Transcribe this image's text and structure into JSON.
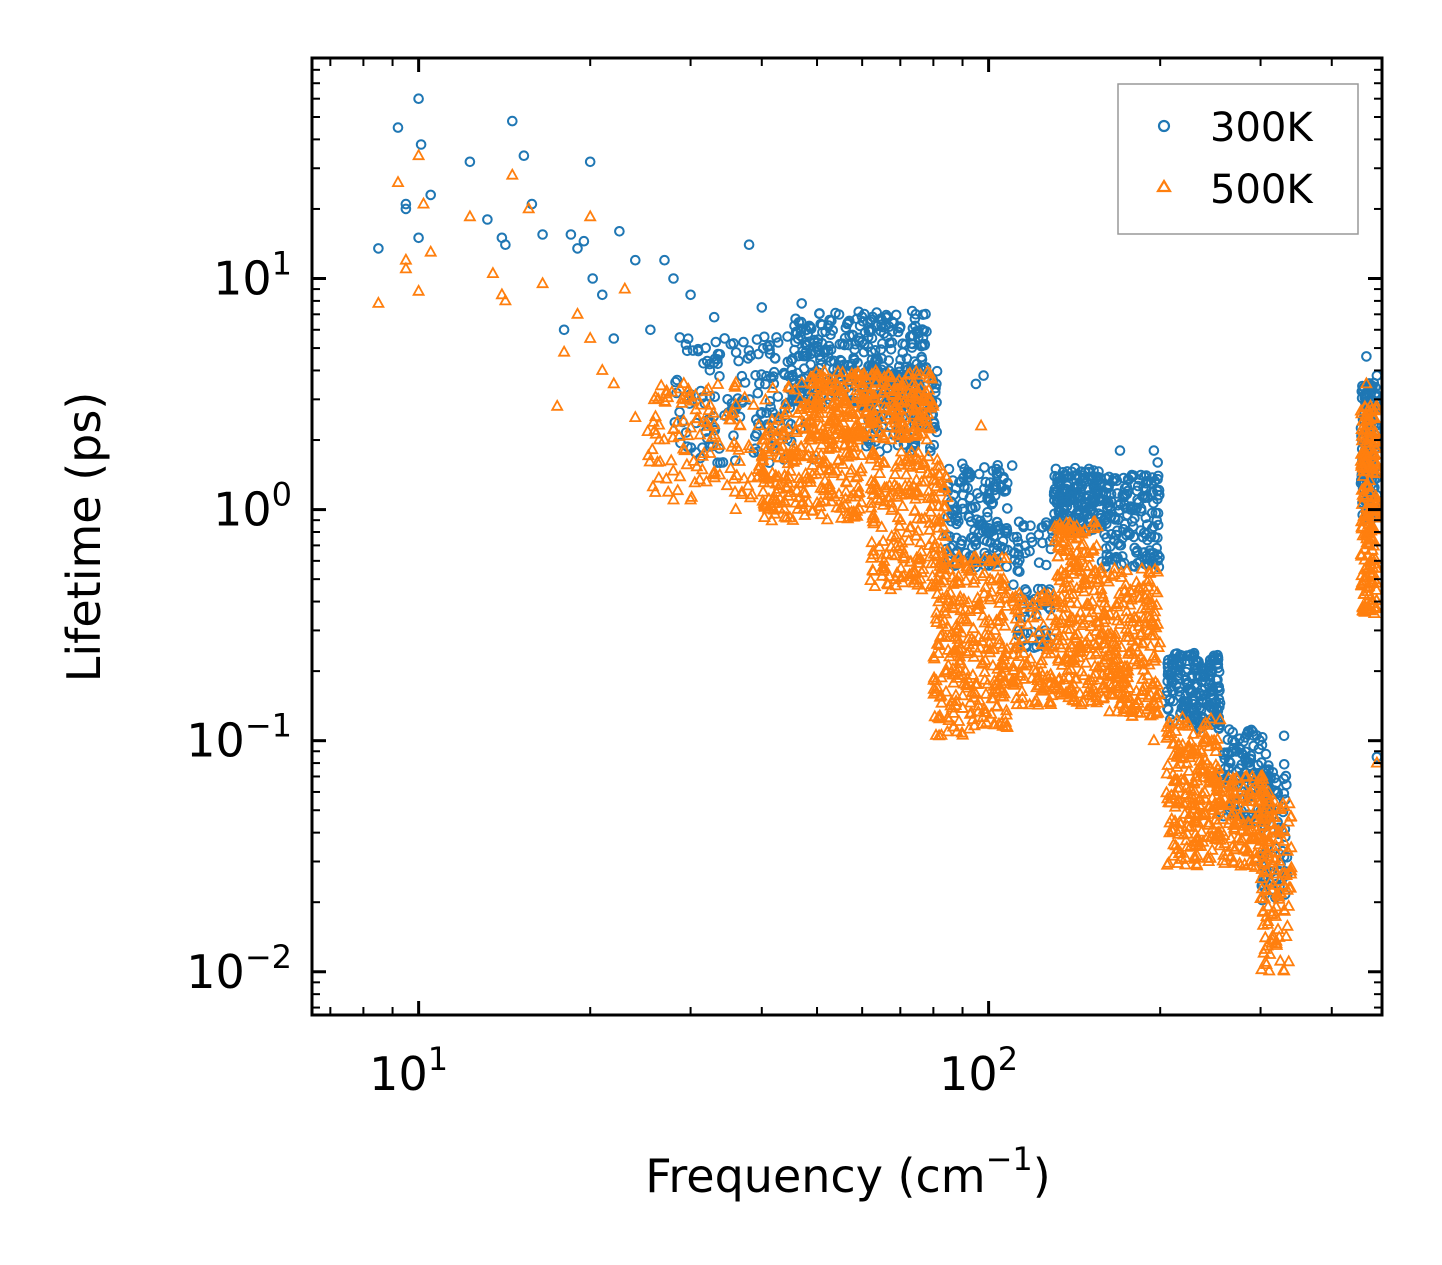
{
  "chart_data": {
    "type": "scatter",
    "xscale": "log",
    "yscale": "log",
    "xlim": [
      6.5,
      490
    ],
    "ylim": [
      0.0065,
      90
    ],
    "xlabel": "Frequency (cm",
    "xlabel_sup": "−1",
    "xlabel_end": ")",
    "ylabel": "Lifetime (ps)",
    "x_major_ticks": [
      {
        "value": 10,
        "base": "10",
        "exp": "1"
      },
      {
        "value": 100,
        "base": "10",
        "exp": "2"
      }
    ],
    "y_major_ticks": [
      {
        "value": 10,
        "base": "10",
        "exp": "1"
      },
      {
        "value": 1,
        "base": "10",
        "exp": "0"
      },
      {
        "value": 0.1,
        "base": "10",
        "exp": "−1"
      },
      {
        "value": 0.01,
        "base": "10",
        "exp": "−2"
      }
    ],
    "legend_position": "top-right",
    "series": [
      {
        "name": "300K",
        "marker": "circle",
        "color": "#1f77b4",
        "points": [
          [
            8.5,
            13.5
          ],
          [
            9.2,
            45
          ],
          [
            9.5,
            20
          ],
          [
            9.5,
            21
          ],
          [
            10,
            60
          ],
          [
            10.1,
            38
          ],
          [
            10,
            15
          ],
          [
            10.5,
            23
          ],
          [
            12.3,
            32
          ],
          [
            13.2,
            18
          ],
          [
            14,
            15
          ],
          [
            14.2,
            14
          ],
          [
            14.6,
            48
          ],
          [
            15.3,
            34
          ],
          [
            15.8,
            21
          ],
          [
            16.5,
            15.5
          ],
          [
            18,
            6
          ],
          [
            18.5,
            15.5
          ],
          [
            19,
            13.5
          ],
          [
            19.5,
            14.5
          ],
          [
            20,
            32
          ],
          [
            20.2,
            10
          ],
          [
            21,
            8.5
          ],
          [
            22,
            5.5
          ],
          [
            22.5,
            16
          ],
          [
            24,
            12
          ],
          [
            25.5,
            6
          ],
          [
            27,
            12
          ],
          [
            28,
            10
          ],
          [
            30,
            8.5
          ],
          [
            33,
            6.8
          ],
          [
            38,
            14
          ],
          [
            40,
            7.5
          ],
          [
            47,
            7.8
          ],
          [
            95,
            3.5
          ],
          [
            98,
            3.8
          ],
          [
            110,
            1.55
          ],
          [
            135,
            1.45
          ],
          [
            150,
            1.5
          ],
          [
            170,
            1.8
          ],
          [
            195,
            1.8
          ],
          [
            198,
            1.6
          ],
          [
            310,
            0.075
          ],
          [
            330,
            0.105
          ],
          [
            460,
            4.6
          ],
          [
            480,
            0.085
          ],
          [
            480,
            3.8
          ]
        ],
        "clusters": [
          {
            "x": [
              28,
              50
            ],
            "ylog": [
              0.2,
              0.75
            ],
            "n": 160
          },
          {
            "x": [
              45,
              78
            ],
            "ylog": [
              0.45,
              0.86
            ],
            "n": 320
          },
          {
            "x": [
              60,
              82
            ],
            "ylog": [
              0.25,
              0.62
            ],
            "n": 120
          },
          {
            "x": [
              84,
              108
            ],
            "ylog": [
              -0.25,
              0.2
            ],
            "n": 160
          },
          {
            "x": [
              110,
              130
            ],
            "ylog": [
              -0.6,
              -0.05
            ],
            "n": 80
          },
          {
            "x": [
              130,
              158
            ],
            "ylog": [
              -0.1,
              0.18
            ],
            "n": 170
          },
          {
            "x": [
              158,
              200
            ],
            "ylog": [
              -0.25,
              0.15
            ],
            "n": 170
          },
          {
            "x": [
              205,
              255
            ],
            "ylog": [
              -0.95,
              -0.62
            ],
            "n": 200
          },
          {
            "x": [
              255,
              310
            ],
            "ylog": [
              -1.35,
              -0.95
            ],
            "n": 120
          },
          {
            "x": [
              300,
              335
            ],
            "ylog": [
              -1.7,
              -1.1
            ],
            "n": 80
          },
          {
            "x": [
              450,
              480
            ],
            "ylog": [
              -0.05,
              0.55
            ],
            "n": 150
          }
        ]
      },
      {
        "name": "500K",
        "marker": "triangle",
        "color": "#ff7f0e",
        "points": [
          [
            8.5,
            7.8
          ],
          [
            9.2,
            26
          ],
          [
            9.5,
            11
          ],
          [
            9.5,
            12
          ],
          [
            10,
            34
          ],
          [
            10.2,
            21
          ],
          [
            10,
            8.8
          ],
          [
            10.5,
            13
          ],
          [
            12.3,
            18.5
          ],
          [
            13.5,
            10.5
          ],
          [
            14,
            8.5
          ],
          [
            14.2,
            8
          ],
          [
            14.6,
            28
          ],
          [
            15.6,
            20
          ],
          [
            16.5,
            9.5
          ],
          [
            17.5,
            2.8
          ],
          [
            18,
            4.8
          ],
          [
            19,
            7
          ],
          [
            20,
            18.5
          ],
          [
            20,
            5.5
          ],
          [
            21,
            4
          ],
          [
            22,
            3.5
          ],
          [
            23,
            9
          ],
          [
            24,
            2.5
          ],
          [
            28,
            1.1
          ],
          [
            30,
            1.1
          ],
          [
            36,
            1.0
          ],
          [
            47,
            1.05
          ],
          [
            97,
            2.3
          ],
          [
            195,
            0.1
          ],
          [
            480,
            0.08
          ],
          [
            460,
            3.5
          ]
        ],
        "clusters": [
          {
            "x": [
              25,
              50
            ],
            "ylog": [
              0.05,
              0.55
            ],
            "n": 180
          },
          {
            "x": [
              40,
              60
            ],
            "ylog": [
              -0.05,
              0.35
            ],
            "n": 200
          },
          {
            "x": [
              48,
              80
            ],
            "ylog": [
              0.3,
              0.6
            ],
            "n": 320
          },
          {
            "x": [
              62,
              85
            ],
            "ylog": [
              -0.35,
              0.25
            ],
            "n": 220
          },
          {
            "x": [
              80,
              108
            ],
            "ylog": [
              -0.98,
              -0.2
            ],
            "n": 300
          },
          {
            "x": [
              110,
              130
            ],
            "ylog": [
              -0.85,
              -0.35
            ],
            "n": 100
          },
          {
            "x": [
              130,
              158
            ],
            "ylog": [
              -0.85,
              -0.05
            ],
            "n": 240
          },
          {
            "x": [
              158,
              200
            ],
            "ylog": [
              -0.9,
              -0.25
            ],
            "n": 240
          },
          {
            "x": [
              205,
              255
            ],
            "ylog": [
              -1.55,
              -0.9
            ],
            "n": 240
          },
          {
            "x": [
              255,
              310
            ],
            "ylog": [
              -1.55,
              -1.15
            ],
            "n": 140
          },
          {
            "x": [
              300,
              340
            ],
            "ylog": [
              -2.0,
              -1.25
            ],
            "n": 120
          },
          {
            "x": [
              450,
              480
            ],
            "ylog": [
              -0.45,
              0.45
            ],
            "n": 200
          }
        ]
      }
    ]
  }
}
